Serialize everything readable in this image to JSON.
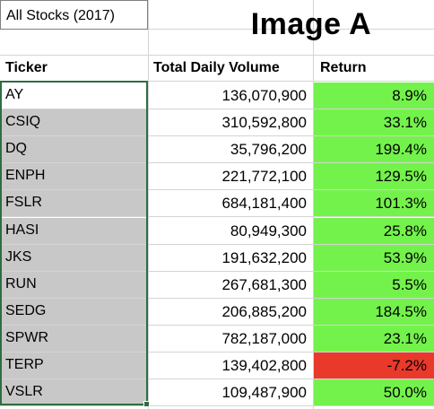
{
  "sheet": {
    "title_cell": "All Stocks (2017)",
    "image_label": "Image A"
  },
  "headers": {
    "ticker": "Ticker",
    "volume": "Total Daily Volume",
    "return": "Return"
  },
  "colors": {
    "positive_return": "#74f24c",
    "negative_return": "#e8392b",
    "selection": "#2f6d40",
    "selected_fill": "#c8c8c8"
  },
  "rows": [
    {
      "ticker": "AY",
      "volume": "136,070,900",
      "return": "8.9%",
      "positive": true
    },
    {
      "ticker": "CSIQ",
      "volume": "310,592,800",
      "return": "33.1%",
      "positive": true
    },
    {
      "ticker": "DQ",
      "volume": "35,796,200",
      "return": "199.4%",
      "positive": true
    },
    {
      "ticker": "ENPH",
      "volume": "221,772,100",
      "return": "129.5%",
      "positive": true
    },
    {
      "ticker": "FSLR",
      "volume": "684,181,400",
      "return": "101.3%",
      "positive": true
    },
    {
      "ticker": "HASI",
      "volume": "80,949,300",
      "return": "25.8%",
      "positive": true
    },
    {
      "ticker": "JKS",
      "volume": "191,632,200",
      "return": "53.9%",
      "positive": true
    },
    {
      "ticker": "RUN",
      "volume": "267,681,300",
      "return": "5.5%",
      "positive": true
    },
    {
      "ticker": "SEDG",
      "volume": "206,885,200",
      "return": "184.5%",
      "positive": true
    },
    {
      "ticker": "SPWR",
      "volume": "782,187,000",
      "return": "23.1%",
      "positive": true
    },
    {
      "ticker": "TERP",
      "volume": "139,402,800",
      "return": "-7.2%",
      "positive": false
    },
    {
      "ticker": "VSLR",
      "volume": "109,487,900",
      "return": "50.0%",
      "positive": true
    }
  ]
}
